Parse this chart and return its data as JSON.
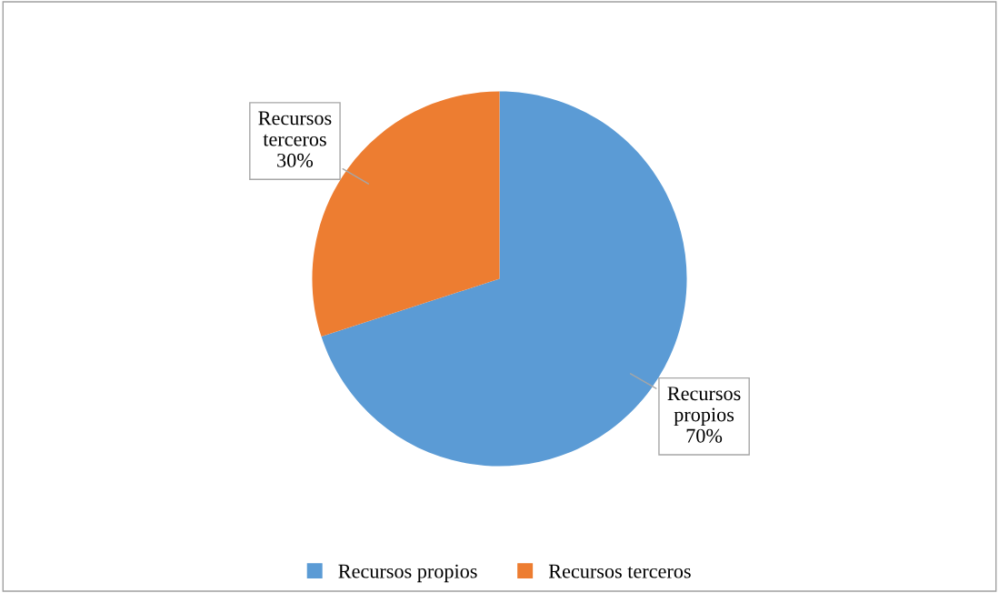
{
  "chart_data": {
    "type": "pie",
    "categories": [
      "Recursos propios",
      "Recursos terceros"
    ],
    "values": [
      70,
      30
    ],
    "colors": [
      "#5b9bd5",
      "#ed7d31"
    ],
    "value_labels": [
      "70%",
      "30%"
    ],
    "legend": "bottom"
  }
}
